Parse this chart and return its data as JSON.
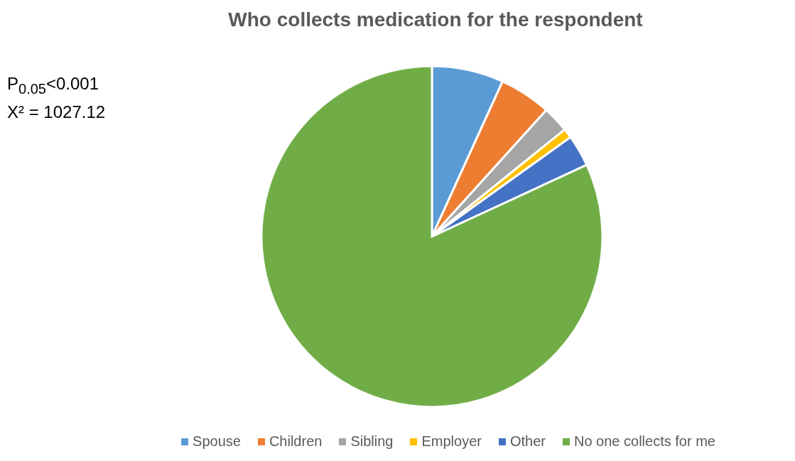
{
  "chart_data": {
    "type": "pie",
    "title": "Who collects medication for the respondent",
    "categories": [
      "Spouse",
      "Children",
      "Sibling",
      "Employer",
      "Other",
      "No one collects for me"
    ],
    "values": [
      6.8,
      4.9,
      2.5,
      0.9,
      3.0,
      81.9
    ],
    "colors": [
      "#5b9bd5",
      "#ed7d31",
      "#a5a5a5",
      "#ffc000",
      "#4472c4",
      "#70ad47"
    ],
    "annotations": [
      "P$_{0.05}$<0.001",
      "X² = 1027.12"
    ],
    "legend": "bottom"
  }
}
